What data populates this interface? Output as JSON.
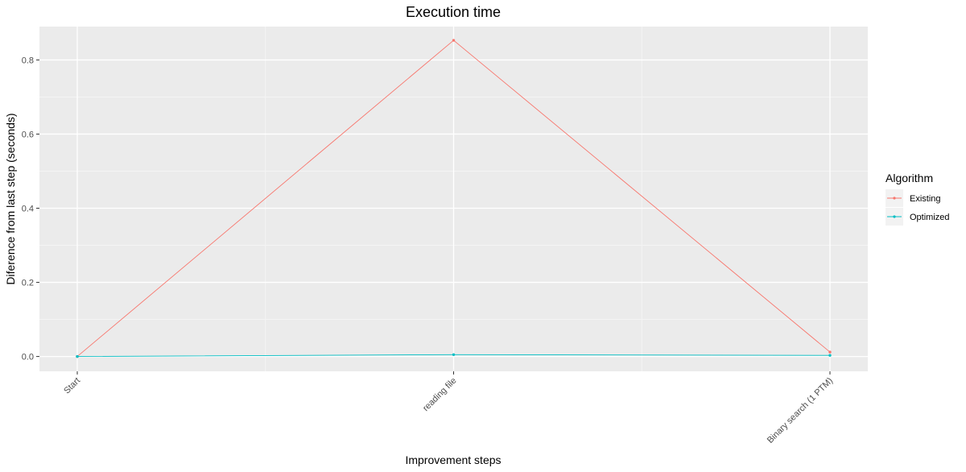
{
  "chart_data": {
    "type": "line",
    "title": "Execution time",
    "xlabel": "Improvement steps",
    "ylabel": "Diference from last step (seconds)",
    "categories": [
      "Start",
      "reading file",
      "Binary search (1 PTM)"
    ],
    "y_ticks": [
      0.0,
      0.2,
      0.4,
      0.6,
      0.8
    ],
    "y_tick_labels": [
      "0.0",
      "0.2",
      "0.4",
      "0.6",
      "0.8"
    ],
    "ylim": [
      -0.04,
      0.89
    ],
    "grid": true,
    "legend": {
      "title": "Algorithm",
      "placement": "right"
    },
    "series": [
      {
        "name": "Existing",
        "values": [
          0.0,
          0.853,
          0.012
        ],
        "color": "#F8766D"
      },
      {
        "name": "Optimized",
        "values": [
          0.0,
          0.005,
          0.003
        ],
        "color": "#00BFC4"
      }
    ]
  }
}
